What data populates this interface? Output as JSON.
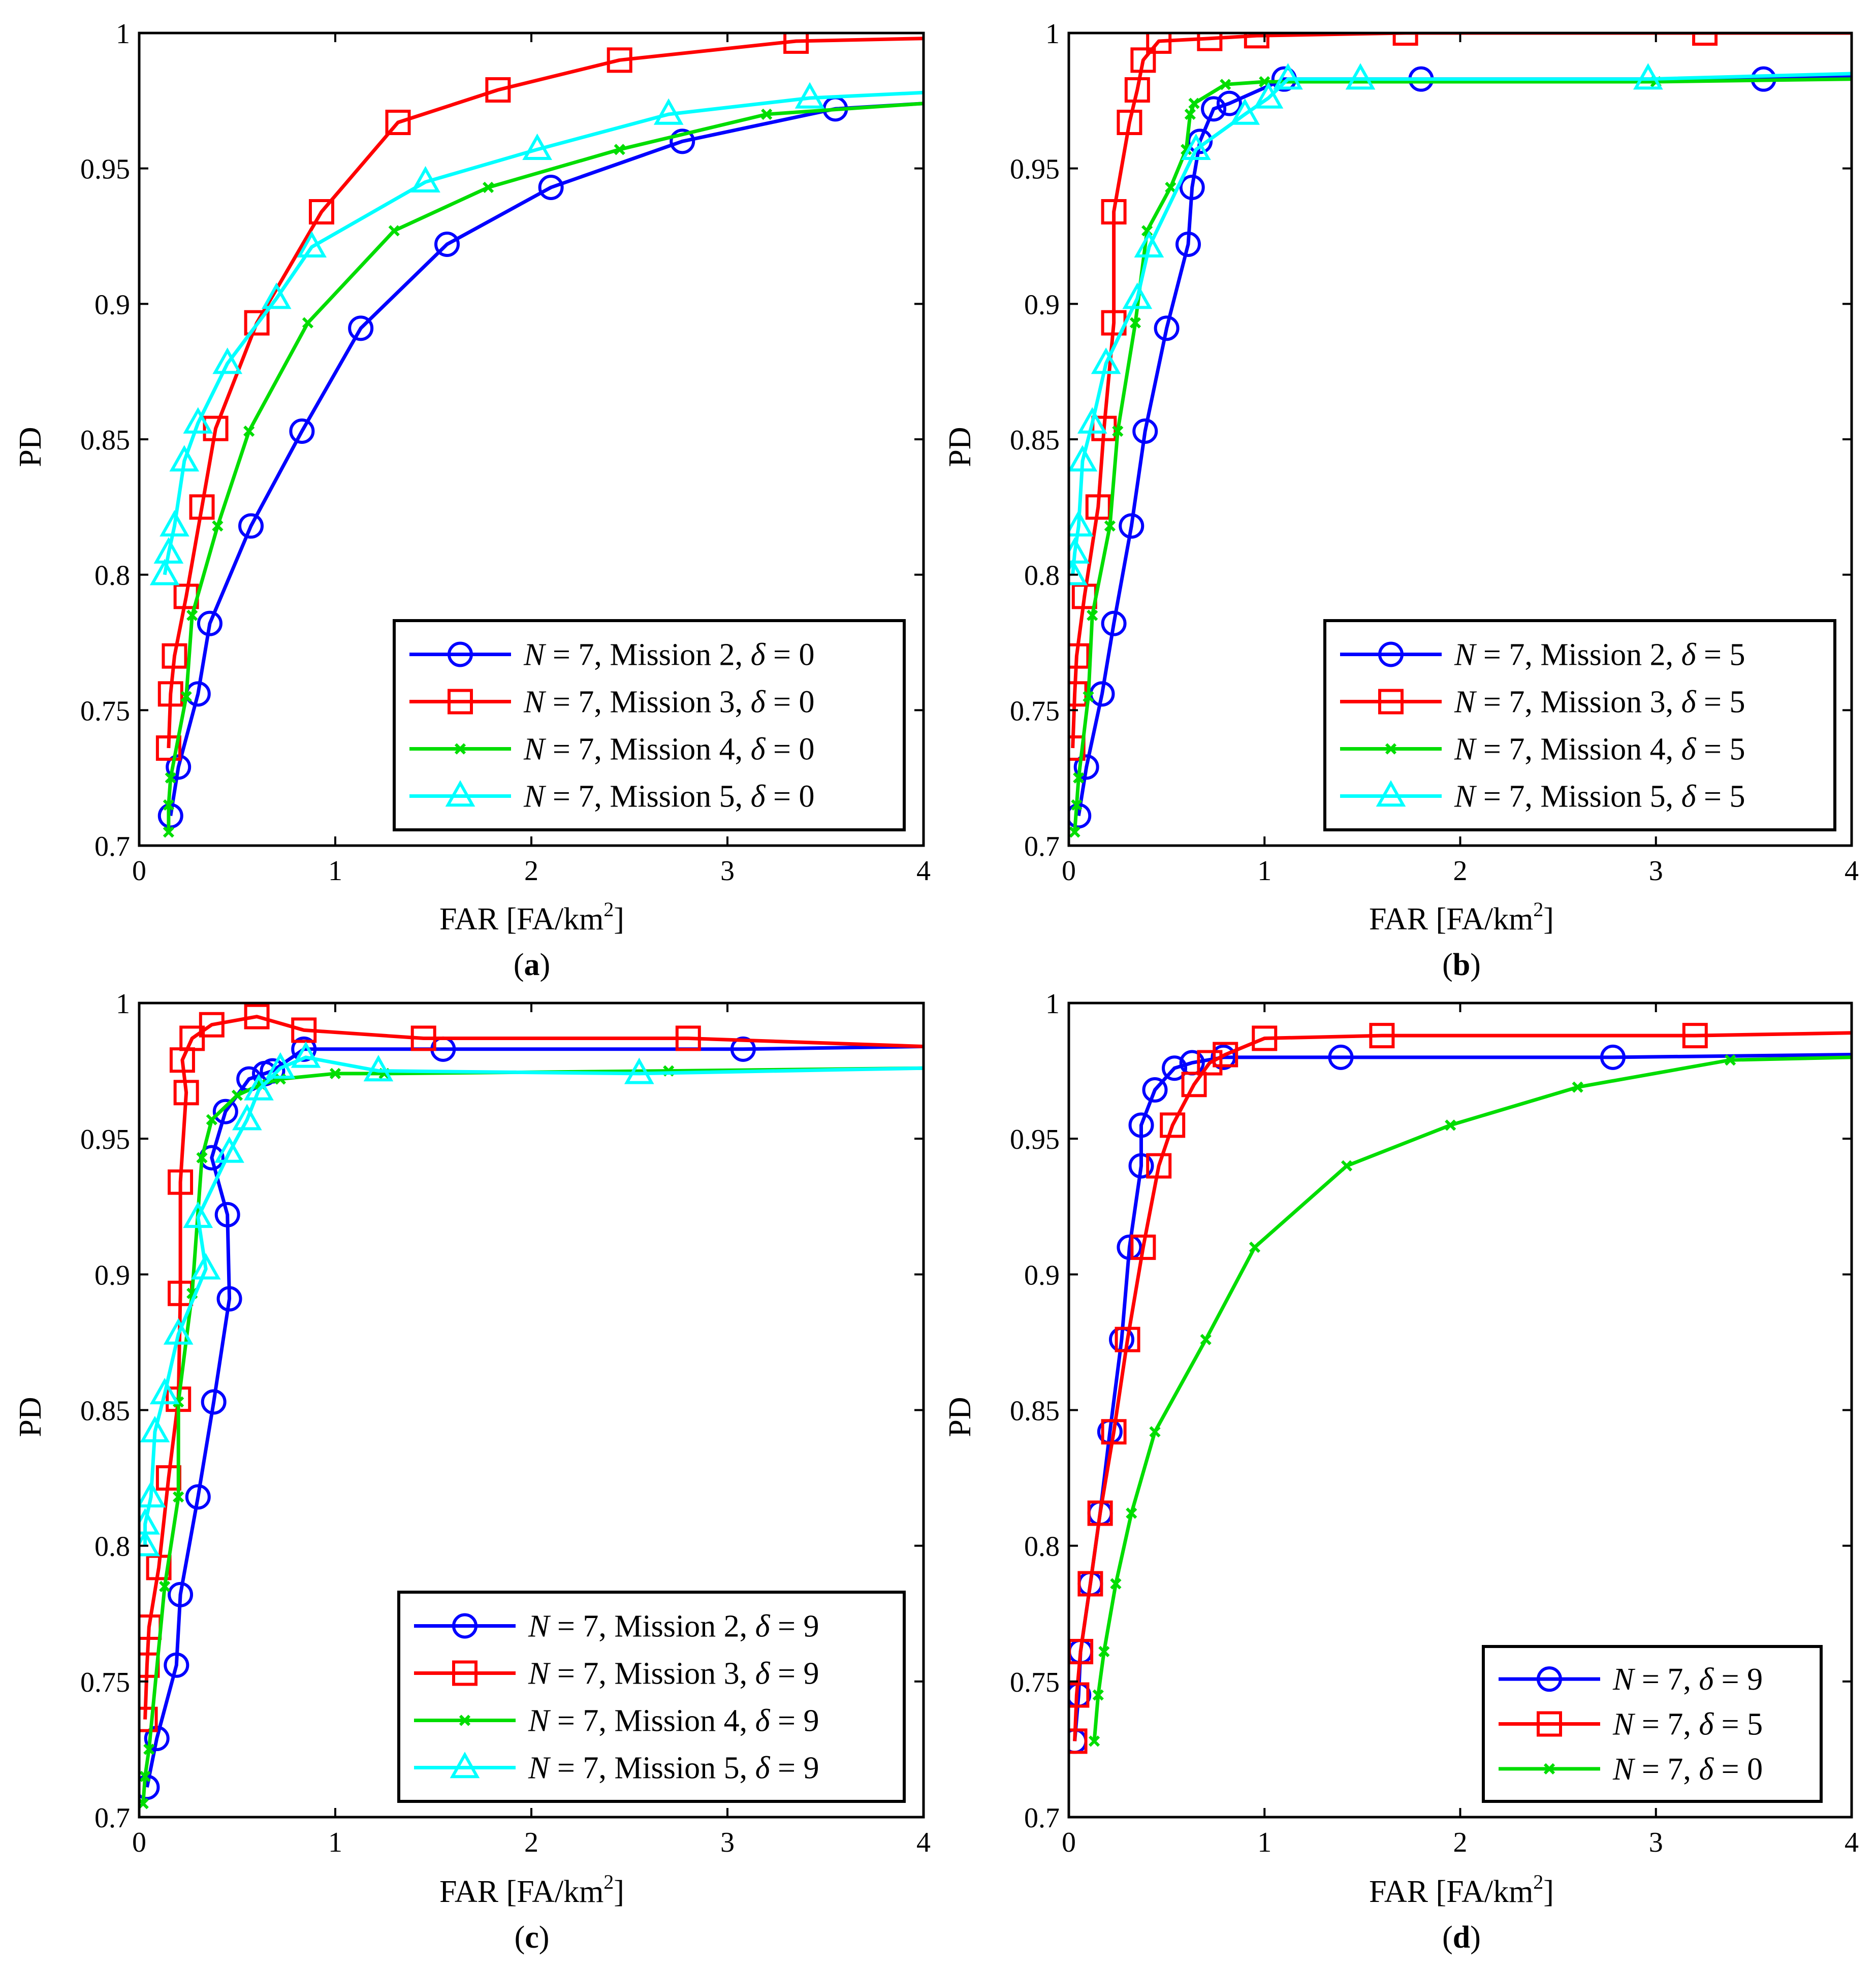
{
  "figure": {
    "ylabel": "PD",
    "xlabel_main": "FAR [FA/km",
    "xlabel_sup": "2",
    "xlabel_end": "]"
  },
  "colors": {
    "blue": "#0000ff",
    "red": "#ff0000",
    "green": "#00dd00",
    "cyan": "#00ffff"
  },
  "chart_data": [
    {
      "panel": "a",
      "caption": "a",
      "type": "line",
      "xlim": [
        0,
        4
      ],
      "ylim": [
        0.7,
        1
      ],
      "xticks": [
        "0",
        "1",
        "2",
        "3",
        "4"
      ],
      "yticks": [
        "0.7",
        "0.75",
        "0.8",
        "0.85",
        "0.9",
        "0.95",
        "1"
      ],
      "xlabel": "FAR [FA/km2]",
      "ylabel": "PD",
      "legend_position": "bottom-right",
      "series": [
        {
          "name": "N = 7, Mission 2, δ = 0",
          "color": "blue",
          "marker": "circle",
          "x": [
            0.16,
            0.2,
            0.3,
            0.36,
            0.57,
            0.83,
            1.13,
            1.57,
            2.1,
            2.77,
            3.55,
            4.0
          ],
          "y": [
            0.711,
            0.729,
            0.756,
            0.782,
            0.818,
            0.853,
            0.891,
            0.922,
            0.943,
            0.96,
            0.972,
            0.974
          ]
        },
        {
          "name": "N = 7, Mission 3, δ = 0",
          "color": "red",
          "marker": "square",
          "x": [
            0.15,
            0.16,
            0.18,
            0.24,
            0.32,
            0.39,
            0.6,
            0.93,
            1.32,
            1.83,
            2.45,
            3.35,
            4.0
          ],
          "y": [
            0.736,
            0.756,
            0.77,
            0.792,
            0.825,
            0.854,
            0.893,
            0.934,
            0.967,
            0.979,
            0.99,
            0.997,
            0.998
          ]
        },
        {
          "name": "N = 7, Mission 4, δ = 0",
          "color": "green",
          "marker": "x",
          "x": [
            0.15,
            0.15,
            0.16,
            0.24,
            0.27,
            0.4,
            0.56,
            0.86,
            1.3,
            1.78,
            2.45,
            3.2,
            4.0
          ],
          "y": [
            0.705,
            0.715,
            0.725,
            0.755,
            0.785,
            0.818,
            0.853,
            0.893,
            0.927,
            0.943,
            0.957,
            0.97,
            0.974
          ]
        },
        {
          "name": "N = 7, Mission 5, δ = 0",
          "color": "cyan",
          "marker": "triangle",
          "x": [
            0.13,
            0.15,
            0.18,
            0.23,
            0.3,
            0.45,
            0.7,
            0.88,
            1.46,
            2.03,
            2.7,
            3.42,
            4.0
          ],
          "y": [
            0.8,
            0.808,
            0.818,
            0.842,
            0.856,
            0.878,
            0.902,
            0.921,
            0.945,
            0.957,
            0.97,
            0.976,
            0.978
          ]
        }
      ]
    },
    {
      "panel": "b",
      "caption": "b",
      "type": "line",
      "xlim": [
        0,
        4
      ],
      "ylim": [
        0.7,
        1
      ],
      "xticks": [
        "0",
        "1",
        "2",
        "3",
        "4"
      ],
      "yticks": [
        "0.7",
        "0.75",
        "0.8",
        "0.85",
        "0.9",
        "0.95",
        "1"
      ],
      "xlabel": "FAR [FA/km2]",
      "ylabel": "PD",
      "legend_position": "bottom-right",
      "series": [
        {
          "name": "N = 7, Mission 2, δ = 5",
          "color": "blue",
          "marker": "circle",
          "x": [
            0.05,
            0.09,
            0.17,
            0.23,
            0.32,
            0.39,
            0.5,
            0.61,
            0.63,
            0.67,
            0.74,
            0.82,
            1.1,
            1.8,
            3.55,
            4.0
          ],
          "y": [
            0.711,
            0.729,
            0.756,
            0.782,
            0.818,
            0.853,
            0.891,
            0.922,
            0.943,
            0.96,
            0.972,
            0.974,
            0.983,
            0.983,
            0.983,
            0.984
          ]
        },
        {
          "name": "N = 7, Mission 3, δ = 5",
          "color": "red",
          "marker": "square",
          "x": [
            0.02,
            0.03,
            0.04,
            0.08,
            0.15,
            0.18,
            0.23,
            0.23,
            0.31,
            0.35,
            0.38,
            0.46,
            0.72,
            0.96,
            1.72,
            3.25,
            4.0
          ],
          "y": [
            0.736,
            0.756,
            0.77,
            0.792,
            0.825,
            0.854,
            0.893,
            0.934,
            0.967,
            0.979,
            0.99,
            0.997,
            0.998,
            0.999,
            1.0,
            1.0,
            1.0
          ]
        },
        {
          "name": "N = 7, Mission 4, δ = 5",
          "color": "green",
          "marker": "x",
          "x": [
            0.03,
            0.04,
            0.05,
            0.1,
            0.12,
            0.21,
            0.25,
            0.34,
            0.4,
            0.52,
            0.6,
            0.62,
            0.64,
            0.8,
            1.0,
            3.0,
            4.0
          ],
          "y": [
            0.705,
            0.715,
            0.725,
            0.755,
            0.785,
            0.818,
            0.853,
            0.893,
            0.927,
            0.943,
            0.957,
            0.97,
            0.974,
            0.981,
            0.982,
            0.982,
            0.983
          ]
        },
        {
          "name": "N = 7, Mission 5, δ = 5",
          "color": "cyan",
          "marker": "triangle",
          "x": [
            0.02,
            0.03,
            0.05,
            0.07,
            0.12,
            0.19,
            0.35,
            0.41,
            0.65,
            0.9,
            1.02,
            1.12,
            1.49,
            2.96,
            4.0
          ],
          "y": [
            0.8,
            0.808,
            0.818,
            0.842,
            0.856,
            0.878,
            0.902,
            0.921,
            0.957,
            0.97,
            0.976,
            0.983,
            0.983,
            0.983,
            0.985
          ]
        }
      ]
    },
    {
      "panel": "c",
      "caption": "c",
      "type": "line",
      "xlim": [
        0,
        4
      ],
      "ylim": [
        0.7,
        1
      ],
      "xticks": [
        "0",
        "1",
        "2",
        "3",
        "4"
      ],
      "yticks": [
        "0.7",
        "0.75",
        "0.8",
        "0.85",
        "0.9",
        "0.95",
        "1"
      ],
      "xlabel": "FAR [FA/km2]",
      "ylabel": "PD",
      "legend_position": "bottom-right",
      "series": [
        {
          "name": "N = 7, Mission 2, δ = 9",
          "color": "blue",
          "marker": "circle",
          "x": [
            0.04,
            0.09,
            0.19,
            0.21,
            0.3,
            0.38,
            0.46,
            0.45,
            0.37,
            0.44,
            0.56,
            0.64,
            0.68,
            0.84,
            1.55,
            3.08,
            4.0
          ],
          "y": [
            0.711,
            0.729,
            0.756,
            0.782,
            0.818,
            0.853,
            0.891,
            0.922,
            0.943,
            0.96,
            0.972,
            0.974,
            0.975,
            0.983,
            0.983,
            0.983,
            0.984
          ]
        },
        {
          "name": "N = 7, Mission 3, δ = 9",
          "color": "red",
          "marker": "square",
          "x": [
            0.03,
            0.04,
            0.05,
            0.1,
            0.15,
            0.2,
            0.21,
            0.21,
            0.24,
            0.22,
            0.27,
            0.37,
            0.6,
            0.84,
            1.45,
            2.8,
            4.0
          ],
          "y": [
            0.736,
            0.756,
            0.77,
            0.792,
            0.825,
            0.854,
            0.893,
            0.934,
            0.967,
            0.979,
            0.987,
            0.992,
            0.995,
            0.99,
            0.987,
            0.987,
            0.984
          ]
        },
        {
          "name": "N = 7, Mission 4, δ = 9",
          "color": "green",
          "marker": "x",
          "x": [
            0.02,
            0.03,
            0.05,
            0.13,
            0.2,
            0.2,
            0.27,
            0.32,
            0.37,
            0.5,
            0.62,
            0.72,
            1.0,
            1.25,
            2.7,
            4.0
          ],
          "y": [
            0.705,
            0.715,
            0.725,
            0.785,
            0.818,
            0.853,
            0.893,
            0.943,
            0.957,
            0.966,
            0.97,
            0.972,
            0.974,
            0.974,
            0.975,
            0.976
          ]
        },
        {
          "name": "N = 7, Mission 5, δ = 9",
          "color": "cyan",
          "marker": "triangle",
          "x": [
            0.03,
            0.03,
            0.06,
            0.08,
            0.13,
            0.2,
            0.34,
            0.3,
            0.46,
            0.55,
            0.61,
            0.72,
            0.85,
            1.22,
            2.55,
            4.0
          ],
          "y": [
            0.8,
            0.808,
            0.818,
            0.842,
            0.856,
            0.878,
            0.902,
            0.921,
            0.945,
            0.957,
            0.968,
            0.976,
            0.98,
            0.975,
            0.974,
            0.976
          ]
        }
      ]
    },
    {
      "panel": "d",
      "caption": "d",
      "type": "line",
      "xlim": [
        0,
        4
      ],
      "ylim": [
        0.7,
        1
      ],
      "xticks": [
        "0",
        "1",
        "2",
        "3",
        "4"
      ],
      "yticks": [
        "0.7",
        "0.75",
        "0.8",
        "0.85",
        "0.9",
        "0.95",
        "1"
      ],
      "xlabel": "FAR [FA/km2]",
      "ylabel": "PD",
      "legend_position": "bottom-right",
      "series": [
        {
          "name": "N = 7, δ = 9",
          "color": "blue",
          "marker": "circle",
          "x": [
            0.03,
            0.05,
            0.06,
            0.11,
            0.16,
            0.21,
            0.27,
            0.31,
            0.37,
            0.37,
            0.44,
            0.54,
            0.63,
            0.79,
            1.39,
            2.78,
            4.0
          ],
          "y": [
            0.728,
            0.745,
            0.761,
            0.786,
            0.812,
            0.842,
            0.876,
            0.91,
            0.94,
            0.955,
            0.968,
            0.976,
            0.978,
            0.98,
            0.98,
            0.98,
            0.981
          ]
        },
        {
          "name": "N = 7, δ = 5",
          "color": "red",
          "marker": "square",
          "x": [
            0.03,
            0.04,
            0.06,
            0.11,
            0.16,
            0.23,
            0.3,
            0.38,
            0.46,
            0.53,
            0.64,
            0.72,
            0.8,
            1.0,
            1.6,
            3.2,
            4.0
          ],
          "y": [
            0.728,
            0.745,
            0.761,
            0.786,
            0.812,
            0.842,
            0.876,
            0.91,
            0.94,
            0.955,
            0.97,
            0.978,
            0.981,
            0.987,
            0.988,
            0.988,
            0.989
          ]
        },
        {
          "name": "N = 7, δ = 0",
          "color": "green",
          "marker": "x",
          "x": [
            0.13,
            0.15,
            0.18,
            0.24,
            0.32,
            0.44,
            0.7,
            0.95,
            1.42,
            1.95,
            2.6,
            3.38,
            4.0
          ],
          "y": [
            0.728,
            0.745,
            0.761,
            0.786,
            0.812,
            0.842,
            0.876,
            0.91,
            0.94,
            0.955,
            0.969,
            0.979,
            0.98
          ]
        }
      ]
    }
  ]
}
